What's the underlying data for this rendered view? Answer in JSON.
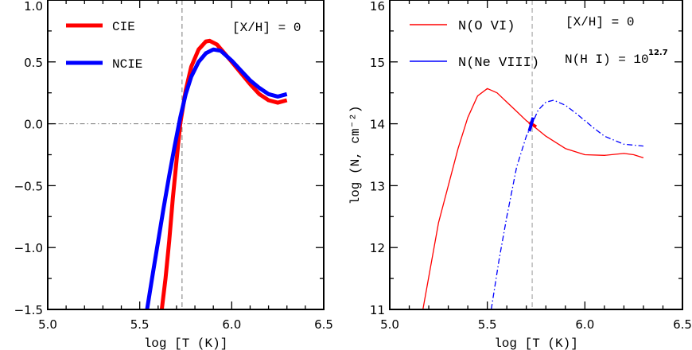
{
  "chart_data": [
    {
      "type": "line",
      "xlabel": "log [T (K)]",
      "ylabel": "",
      "xlim": [
        5.0,
        6.5
      ],
      "ylim": [
        -1.5,
        1.0
      ],
      "xticks": [
        "5.0",
        "5.5",
        "6.0",
        "6.5"
      ],
      "yticks": [
        "−1.5",
        "−1.0",
        "−0.5",
        "0.0",
        "0.5",
        "1.0"
      ],
      "annotation": "[X/H] = 0",
      "reference_lines": {
        "vertical_x": 5.73,
        "horizontal_y": 0.0
      },
      "legend_position": "top-left",
      "series": [
        {
          "name": "CIE",
          "color": "#ff0000",
          "x": [
            5.62,
            5.64,
            5.66,
            5.68,
            5.7,
            5.72,
            5.75,
            5.78,
            5.82,
            5.86,
            5.88,
            5.92,
            5.96,
            6.0,
            6.05,
            6.1,
            6.15,
            6.2,
            6.25,
            6.3
          ],
          "y": [
            -1.5,
            -1.25,
            -0.95,
            -0.6,
            -0.3,
            0.0,
            0.27,
            0.46,
            0.6,
            0.665,
            0.67,
            0.64,
            0.57,
            0.5,
            0.41,
            0.32,
            0.24,
            0.19,
            0.17,
            0.19
          ]
        },
        {
          "name": "NCIE",
          "color": "#0000ff",
          "x": [
            5.54,
            5.57,
            5.6,
            5.63,
            5.66,
            5.69,
            5.72,
            5.75,
            5.78,
            5.82,
            5.86,
            5.9,
            5.94,
            6.0,
            6.05,
            6.1,
            6.15,
            6.2,
            6.25,
            6.3
          ],
          "y": [
            -1.5,
            -1.22,
            -0.95,
            -0.68,
            -0.42,
            -0.18,
            0.05,
            0.24,
            0.38,
            0.5,
            0.57,
            0.6,
            0.59,
            0.51,
            0.43,
            0.35,
            0.29,
            0.24,
            0.22,
            0.24
          ]
        }
      ]
    },
    {
      "type": "line",
      "xlabel": "log [T (K)]",
      "ylabel": "log (N, cm⁻²)",
      "xlim": [
        5.0,
        6.5
      ],
      "ylim": [
        11,
        16
      ],
      "xticks": [
        "5.0",
        "5.5",
        "6.0",
        "6.5"
      ],
      "yticks": [
        "11",
        "12",
        "13",
        "14",
        "15",
        "16"
      ],
      "annotations": [
        "[X/H] = 0",
        "N(H I) = 10",
        "12.7"
      ],
      "reference_lines": {
        "vertical_x": 5.73
      },
      "legend_position": "top-left",
      "series": [
        {
          "name": "N(O VI)",
          "color": "#ff0000",
          "style": "solid",
          "x": [
            5.17,
            5.21,
            5.25,
            5.3,
            5.35,
            5.4,
            5.45,
            5.5,
            5.55,
            5.6,
            5.65,
            5.7,
            5.73,
            5.8,
            5.9,
            6.0,
            6.1,
            6.2,
            6.25,
            6.3
          ],
          "y": [
            11.0,
            11.7,
            12.4,
            13.0,
            13.6,
            14.1,
            14.45,
            14.57,
            14.5,
            14.35,
            14.2,
            14.05,
            13.98,
            13.8,
            13.6,
            13.5,
            13.49,
            13.52,
            13.5,
            13.45
          ]
        },
        {
          "name": "N(Ne VIII)",
          "color": "#0000ff",
          "style": "dash-dot",
          "x": [
            5.52,
            5.56,
            5.6,
            5.65,
            5.7,
            5.73,
            5.76,
            5.8,
            5.84,
            5.9,
            5.95,
            6.0,
            6.05,
            6.1,
            6.2,
            6.3
          ],
          "y": [
            11.0,
            11.8,
            12.5,
            13.3,
            13.8,
            14.0,
            14.22,
            14.35,
            14.38,
            14.3,
            14.18,
            14.05,
            13.92,
            13.8,
            13.67,
            13.64
          ]
        }
      ]
    }
  ]
}
